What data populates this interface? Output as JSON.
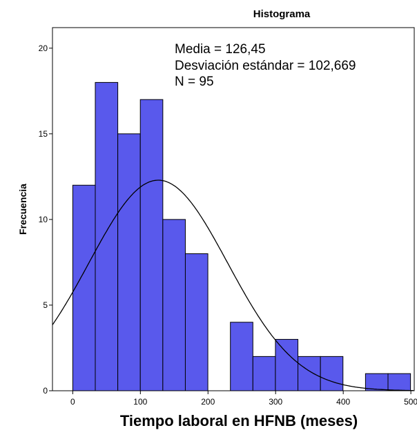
{
  "chart_data": {
    "type": "bar",
    "title": "Histograma",
    "xlabel": "Tiempo laboral en HFNB (meses)",
    "ylabel": "Frecuencia",
    "annotations": [
      "Media = 126,45",
      "Desviación estándar = 102,669",
      "N = 95"
    ],
    "xlim": [
      -30,
      505
    ],
    "ylim": [
      0,
      21.2
    ],
    "x_ticks": [
      0,
      100,
      200,
      300,
      400,
      500
    ],
    "y_ticks": [
      0,
      5,
      10,
      15,
      20
    ],
    "bin_width": 33.3,
    "bins": [
      {
        "start": 0,
        "end": 33.3,
        "count": 12
      },
      {
        "start": 33.3,
        "end": 66.6,
        "count": 18
      },
      {
        "start": 66.6,
        "end": 99.9,
        "count": 15
      },
      {
        "start": 99.9,
        "end": 133.2,
        "count": 17
      },
      {
        "start": 133.2,
        "end": 166.5,
        "count": 10
      },
      {
        "start": 166.5,
        "end": 199.8,
        "count": 8
      },
      {
        "start": 199.8,
        "end": 233.1,
        "count": 0
      },
      {
        "start": 233.1,
        "end": 266.4,
        "count": 4
      },
      {
        "start": 266.4,
        "end": 299.7,
        "count": 2
      },
      {
        "start": 299.7,
        "end": 333.0,
        "count": 3
      },
      {
        "start": 333.0,
        "end": 366.3,
        "count": 2
      },
      {
        "start": 366.3,
        "end": 399.6,
        "count": 2
      },
      {
        "start": 399.6,
        "end": 432.9,
        "count": 0
      },
      {
        "start": 432.9,
        "end": 466.2,
        "count": 1
      },
      {
        "start": 466.2,
        "end": 499.5,
        "count": 1
      }
    ],
    "normal_curve": {
      "mean": 126.45,
      "std": 102.669,
      "n": 95
    },
    "grid": false,
    "colors": {
      "bar_fill": "#5959ec",
      "bar_stroke": "#000000",
      "curve": "#000000"
    }
  }
}
